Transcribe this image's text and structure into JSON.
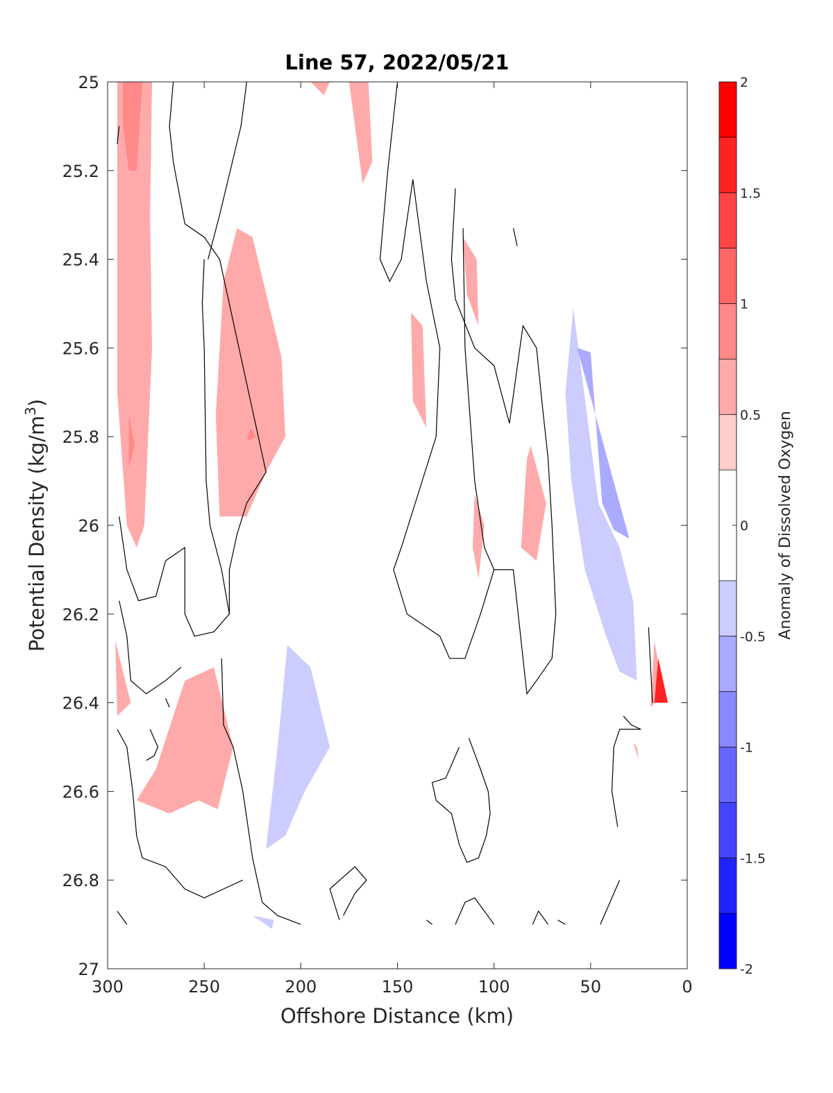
{
  "chart_data": {
    "type": "contour",
    "title": "Line 57, 2022/05/21",
    "xlabel": "Offshore Distance (km)",
    "ylabel_main": "Potential Density (kg/m",
    "ylabel_sup": "3",
    "ylabel_end": ")",
    "colorbar_label": "Anomaly of Dissolved Oxygen",
    "xlim": [
      300,
      0
    ],
    "ylim": [
      25,
      27
    ],
    "y_reversed": true,
    "x_ticks": [
      "300",
      "250",
      "200",
      "150",
      "100",
      "50",
      "0"
    ],
    "x_tick_values": [
      300,
      250,
      200,
      150,
      100,
      50,
      0
    ],
    "y_ticks": [
      "25",
      "25.2",
      "25.4",
      "25.6",
      "25.8",
      "26",
      "26.2",
      "26.4",
      "26.6",
      "26.8",
      "27"
    ],
    "y_tick_values": [
      25,
      25.2,
      25.4,
      25.6,
      25.8,
      26,
      26.2,
      26.4,
      26.6,
      26.8,
      27
    ],
    "colorbar": {
      "range": [
        -2,
        2
      ],
      "ticks": [
        "2",
        "1.5",
        "1",
        "0.5",
        "0",
        "-0.5",
        "-1",
        "-1.5",
        "-2"
      ],
      "tick_values": [
        2,
        1.5,
        1,
        0.5,
        0,
        -0.5,
        -1,
        -1.5,
        -2
      ],
      "levels": [
        -2,
        -1.75,
        -1.5,
        -1.25,
        -1,
        -0.75,
        -0.5,
        -0.25,
        0.25,
        0.5,
        0.75,
        1,
        1.25,
        1.5,
        1.75,
        2
      ],
      "colors": [
        "#0000ff",
        "#2222ff",
        "#4444ff",
        "#6666ff",
        "#8888ff",
        "#aaaaff",
        "#ccccff",
        "#ffffff",
        "#ffcccc",
        "#ffaaaa",
        "#ff8888",
        "#ff6666",
        "#ff4444",
        "#ff2222",
        "#ff0000"
      ]
    },
    "filled_regions": [
      {
        "level": 0.5,
        "points": [
          [
            295,
            25.0
          ],
          [
            277,
            25.0
          ],
          [
            278,
            25.3
          ],
          [
            277,
            25.6
          ],
          [
            281,
            26.0
          ],
          [
            285,
            26.05
          ],
          [
            290,
            26.0
          ],
          [
            295,
            25.7
          ]
        ]
      },
      {
        "level": 0.75,
        "points": [
          [
            292,
            25.0
          ],
          [
            282,
            25.0
          ],
          [
            285,
            25.2
          ],
          [
            289,
            25.2
          ],
          [
            292,
            25.1
          ]
        ]
      },
      {
        "level": 0.75,
        "points": [
          [
            289,
            25.75
          ],
          [
            286,
            25.82
          ],
          [
            289,
            25.87
          ]
        ]
      },
      {
        "level": 0.5,
        "points": [
          [
            233,
            25.33
          ],
          [
            225,
            25.35
          ],
          [
            210,
            25.62
          ],
          [
            208,
            25.8
          ],
          [
            218,
            25.88
          ],
          [
            228,
            25.98
          ],
          [
            242,
            25.98
          ],
          [
            244,
            25.75
          ],
          [
            240,
            25.45
          ]
        ]
      },
      {
        "level": 0.75,
        "points": [
          [
            226,
            25.78
          ],
          [
            223,
            25.8
          ],
          [
            228,
            25.81
          ]
        ]
      },
      {
        "level": 0.5,
        "points": [
          [
            175,
            25.0
          ],
          [
            165,
            25.0
          ],
          [
            163,
            25.18
          ],
          [
            168,
            25.23
          ]
        ]
      },
      {
        "level": 0.5,
        "points": [
          [
            195,
            25.0
          ],
          [
            185,
            25.0
          ],
          [
            188,
            25.03
          ]
        ]
      },
      {
        "level": 0.5,
        "points": [
          [
            143,
            25.52
          ],
          [
            137,
            25.55
          ],
          [
            135,
            25.78
          ],
          [
            142,
            25.72
          ]
        ]
      },
      {
        "level": 0.5,
        "points": [
          [
            116,
            25.35
          ],
          [
            109,
            25.4
          ],
          [
            108,
            25.55
          ],
          [
            114,
            25.48
          ]
        ]
      },
      {
        "level": 0.5,
        "points": [
          [
            110,
            25.93
          ],
          [
            105,
            26.0
          ],
          [
            108,
            26.12
          ],
          [
            111,
            26.05
          ]
        ]
      },
      {
        "level": 0.5,
        "points": [
          [
            81,
            25.82
          ],
          [
            73,
            25.95
          ],
          [
            78,
            26.08
          ],
          [
            86,
            26.05
          ],
          [
            83,
            25.85
          ]
        ]
      },
      {
        "level": 0.5,
        "points": [
          [
            296,
            26.26
          ],
          [
            288,
            26.4
          ],
          [
            295,
            26.43
          ]
        ]
      },
      {
        "level": 0.5,
        "points": [
          [
            245,
            26.32
          ],
          [
            260,
            26.35
          ],
          [
            275,
            26.55
          ],
          [
            285,
            26.62
          ],
          [
            268,
            26.65
          ],
          [
            253,
            26.62
          ],
          [
            243,
            26.64
          ],
          [
            235,
            26.5
          ]
        ]
      },
      {
        "level": 0.5,
        "points": [
          [
            17,
            26.26
          ],
          [
            12,
            26.38
          ],
          [
            19,
            26.41
          ]
        ]
      },
      {
        "level": 1.5,
        "points": [
          [
            15,
            26.3
          ],
          [
            10,
            26.4
          ],
          [
            17,
            26.4
          ]
        ]
      },
      {
        "level": 0.5,
        "points": [
          [
            28,
            26.49
          ],
          [
            25,
            26.53
          ],
          [
            26,
            26.5
          ]
        ]
      },
      {
        "level": -0.5,
        "points": [
          [
            59,
            25.51
          ],
          [
            63,
            25.7
          ],
          [
            60,
            25.9
          ],
          [
            53,
            26.1
          ],
          [
            42,
            26.25
          ],
          [
            35,
            26.33
          ],
          [
            26,
            26.35
          ],
          [
            28,
            26.17
          ],
          [
            35,
            26.05
          ],
          [
            46,
            25.95
          ]
        ]
      },
      {
        "level": -0.75,
        "points": [
          [
            57,
            25.6
          ],
          [
            50,
            25.61
          ],
          [
            44,
            25.95
          ],
          [
            38,
            26.01
          ],
          [
            30,
            26.03
          ]
        ]
      },
      {
        "level": -0.5,
        "points": [
          [
            207,
            26.27
          ],
          [
            195,
            26.32
          ],
          [
            185,
            26.5
          ],
          [
            198,
            26.6
          ],
          [
            208,
            26.7
          ],
          [
            218,
            26.73
          ],
          [
            212,
            26.5
          ]
        ]
      },
      {
        "level": -0.5,
        "points": [
          [
            225,
            26.88
          ],
          [
            214,
            26.89
          ],
          [
            215,
            26.91
          ]
        ]
      }
    ],
    "contour_lines": [
      {
        "level": 0,
        "points": [
          [
            295,
            25.14
          ],
          [
            294,
            25.1
          ]
        ]
      },
      {
        "level": 0,
        "points": [
          [
            294,
            25.98
          ],
          [
            290,
            26.1
          ],
          [
            284,
            26.17
          ],
          [
            275,
            26.16
          ],
          [
            270,
            26.08
          ],
          [
            260,
            26.05
          ],
          [
            260,
            26.2
          ],
          [
            255,
            26.25
          ],
          [
            245,
            26.24
          ],
          [
            237,
            26.2
          ],
          [
            237,
            26.1
          ],
          [
            233,
            26.02
          ],
          [
            228,
            25.95
          ],
          [
            218,
            25.88
          ],
          [
            242,
            25.4
          ],
          [
            250,
            25.35
          ],
          [
            260,
            25.32
          ],
          [
            266,
            25.18
          ],
          [
            268,
            25.1
          ],
          [
            266,
            25.0
          ]
        ]
      },
      {
        "level": 0,
        "points": [
          [
            250,
            25.4
          ],
          [
            251,
            25.5
          ],
          [
            250,
            25.6
          ],
          [
            249,
            25.9
          ],
          [
            247,
            26.0
          ],
          [
            241,
            26.1
          ],
          [
            237,
            26.2
          ]
        ]
      },
      {
        "level": 0,
        "points": [
          [
            228,
            25.0
          ],
          [
            231,
            25.1
          ],
          [
            242,
            25.3
          ],
          [
            248,
            25.4
          ]
        ]
      },
      {
        "level": 0,
        "points": [
          [
            150,
            25.0
          ],
          [
            155,
            25.2
          ],
          [
            159,
            25.4
          ],
          [
            154,
            25.45
          ],
          [
            148,
            25.4
          ],
          [
            142,
            25.22
          ],
          [
            135,
            25.45
          ],
          [
            128,
            25.6
          ],
          [
            130,
            25.8
          ],
          [
            148,
            26.05
          ],
          [
            152,
            26.1
          ],
          [
            145,
            26.2
          ],
          [
            128,
            26.25
          ],
          [
            123,
            26.3
          ],
          [
            115,
            26.3
          ],
          [
            107,
            26.2
          ],
          [
            100,
            26.1
          ],
          [
            90,
            26.1
          ],
          [
            83,
            26.38
          ],
          [
            78,
            26.35
          ],
          [
            70,
            26.3
          ],
          [
            68,
            26.2
          ],
          [
            70,
            26.0
          ],
          [
            72,
            25.85
          ],
          [
            75,
            25.73
          ],
          [
            78,
            25.6
          ],
          [
            85,
            25.55
          ],
          [
            92,
            25.77
          ],
          [
            100,
            25.64
          ],
          [
            110,
            25.6
          ],
          [
            120,
            25.49
          ],
          [
            122,
            25.4
          ],
          [
            120,
            25.24
          ]
        ]
      },
      {
        "level": 0,
        "points": [
          [
            116,
            25.33
          ],
          [
            115,
            25.6
          ],
          [
            110,
            25.9
          ],
          [
            105,
            26.05
          ],
          [
            100,
            26.1
          ]
        ]
      },
      {
        "level": 0,
        "points": [
          [
            241,
            26.3
          ],
          [
            240,
            26.45
          ],
          [
            235,
            26.5
          ],
          [
            230,
            26.6
          ],
          [
            225,
            26.75
          ],
          [
            220,
            26.85
          ],
          [
            212,
            26.88
          ],
          [
            200,
            26.9
          ]
        ]
      },
      {
        "level": 0,
        "points": [
          [
            270,
            26.39
          ],
          [
            268,
            26.41
          ]
        ]
      },
      {
        "level": 0,
        "points": [
          [
            294,
            26.17
          ],
          [
            290,
            26.25
          ],
          [
            288,
            26.35
          ],
          [
            280,
            26.38
          ],
          [
            270,
            26.35
          ],
          [
            262,
            26.32
          ]
        ]
      },
      {
        "level": 0,
        "points": [
          [
            295,
            26.46
          ],
          [
            290,
            26.5
          ],
          [
            287,
            26.6
          ],
          [
            285,
            26.7
          ],
          [
            282,
            26.75
          ],
          [
            270,
            26.77
          ],
          [
            260,
            26.82
          ],
          [
            250,
            26.84
          ],
          [
            240,
            26.82
          ],
          [
            230,
            26.8
          ]
        ]
      },
      {
        "level": 0,
        "points": [
          [
            278,
            26.46
          ],
          [
            274,
            26.5
          ],
          [
            276,
            26.52
          ],
          [
            280,
            26.53
          ]
        ]
      },
      {
        "level": 0,
        "points": [
          [
            113,
            26.48
          ],
          [
            107,
            26.55
          ],
          [
            103,
            26.6
          ],
          [
            102,
            26.65
          ],
          [
            104,
            26.7
          ],
          [
            108,
            26.75
          ],
          [
            114,
            26.76
          ],
          [
            118,
            26.72
          ],
          [
            122,
            26.65
          ],
          [
            130,
            26.62
          ],
          [
            132,
            26.58
          ],
          [
            125,
            26.57
          ],
          [
            118,
            26.5
          ]
        ]
      },
      {
        "level": 0,
        "points": [
          [
            33,
            26.43
          ],
          [
            29,
            26.45
          ],
          [
            24,
            26.46
          ],
          [
            35,
            26.46
          ],
          [
            38,
            26.5
          ],
          [
            39,
            26.6
          ],
          [
            36,
            26.68
          ]
        ]
      },
      {
        "level": 0,
        "points": [
          [
            180,
            26.89
          ],
          [
            185,
            26.82
          ],
          [
            172,
            26.77
          ],
          [
            168,
            26.79
          ],
          [
            166,
            26.8
          ],
          [
            172,
            26.83
          ],
          [
            178,
            26.88
          ]
        ]
      },
      {
        "level": 0,
        "points": [
          [
            120,
            26.9
          ],
          [
            115,
            26.85
          ],
          [
            110,
            26.84
          ],
          [
            105,
            26.87
          ],
          [
            100,
            26.9
          ]
        ]
      },
      {
        "level": 0,
        "points": [
          [
            80,
            26.9
          ],
          [
            77,
            26.87
          ],
          [
            72,
            26.9
          ]
        ]
      },
      {
        "level": 0,
        "points": [
          [
            45,
            26.9
          ],
          [
            40,
            26.85
          ],
          [
            35,
            26.8
          ]
        ]
      },
      {
        "level": 0,
        "points": [
          [
            295,
            26.87
          ],
          [
            290,
            26.9
          ]
        ]
      },
      {
        "level": 0,
        "points": [
          [
            135,
            26.89
          ],
          [
            132,
            26.9
          ]
        ]
      },
      {
        "level": 0,
        "points": [
          [
            67,
            26.89
          ],
          [
            63,
            26.9
          ]
        ]
      },
      {
        "level": 0,
        "points": [
          [
            20,
            26.23
          ],
          [
            18,
            26.4
          ]
        ]
      },
      {
        "level": 0,
        "points": [
          [
            90,
            25.33
          ],
          [
            88,
            25.37
          ]
        ]
      }
    ]
  }
}
